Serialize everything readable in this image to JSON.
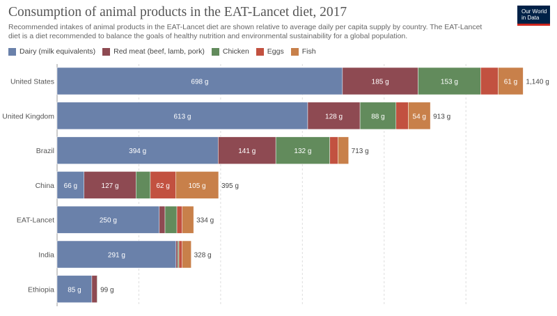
{
  "header": {
    "title": "Consumption of animal products in the EAT-Lancet diet, 2017",
    "subtitle": "Recommended intakes of animal products in the EAT-Lancet diet are shown relative to average daily per capita supply by country. The EAT-Lancet diet is a diet recommended to balance the goals of healthy nutrition and environmental sustainability for a global population.",
    "logo_line1": "Our World",
    "logo_line2": "in Data"
  },
  "colors": {
    "dairy": "#6a81aa",
    "red_meat": "#8e4a52",
    "chicken": "#628b5c",
    "eggs": "#c25140",
    "fish": "#c8804a"
  },
  "chart_data": {
    "type": "bar",
    "orientation": "horizontal",
    "stacked": true,
    "unit": "g",
    "categories": [
      "United States",
      "United Kingdom",
      "Brazil",
      "China",
      "EAT-Lancet",
      "India",
      "Ethiopia"
    ],
    "series": [
      {
        "name": "Dairy (milk equivalents)",
        "key": "dairy",
        "values": [
          698,
          613,
          394,
          66,
          250,
          291,
          85
        ]
      },
      {
        "name": "Red meat (beef, lamb, pork)",
        "key": "red_meat",
        "values": [
          185,
          128,
          141,
          127,
          14,
          4,
          13
        ]
      },
      {
        "name": "Chicken",
        "key": "chicken",
        "values": [
          153,
          88,
          132,
          35,
          29,
          3,
          1
        ]
      },
      {
        "name": "Eggs",
        "key": "eggs",
        "values": [
          43,
          30,
          20,
          62,
          13,
          8,
          0
        ]
      },
      {
        "name": "Fish",
        "key": "fish",
        "values": [
          61,
          54,
          26,
          105,
          28,
          22,
          0
        ]
      }
    ],
    "totals": [
      "1,140 g",
      "913 g",
      "713 g",
      "395 g",
      "334 g",
      "328 g",
      "99 g"
    ],
    "xlim": [
      0,
      1140
    ],
    "grid": true,
    "legend_position": "top-left"
  }
}
